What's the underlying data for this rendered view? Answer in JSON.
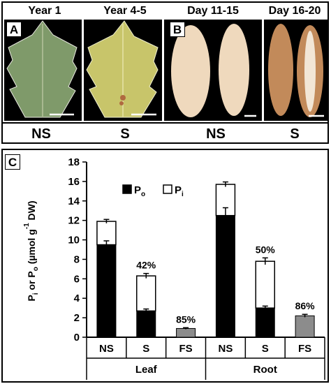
{
  "panel_a": {
    "letter": "A",
    "headers": [
      "Year 1",
      "Year 4-5"
    ],
    "conditions": [
      "NS",
      "S"
    ]
  },
  "panel_b": {
    "letter": "B",
    "headers": [
      "Day 11-15",
      "Day 16-20"
    ],
    "conditions": [
      "NS",
      "S"
    ]
  },
  "colors": {
    "leaf_ns": "#7f9a6a",
    "leaf_s": "#c8c56a",
    "root_ns": "#efd9bd",
    "root_s": "#c28a5a",
    "po_fill": "#000000",
    "pi_fill": "#ffffff",
    "fs_fill": "#8c8c8c"
  },
  "chart_data": {
    "letter": "C",
    "type": "bar",
    "stacked": true,
    "ylabel_parts": [
      "P",
      "i",
      " or P",
      "o",
      " (µmol g",
      "-1",
      " DW)"
    ],
    "ylim": [
      0,
      18
    ],
    "yticks": [
      "0",
      "2",
      "4",
      "6",
      "8",
      "10",
      "12",
      "14",
      "16",
      "18"
    ],
    "categories": [
      "NS",
      "S",
      "FS",
      "NS",
      "S",
      "FS"
    ],
    "groups": [
      "Leaf",
      "Root"
    ],
    "legend": [
      {
        "main": "P",
        "sub": "o",
        "color": "#000000"
      },
      {
        "main": "P",
        "sub": "i",
        "color": "#ffffff"
      }
    ],
    "series": [
      {
        "key": "Po",
        "values": [
          9.5,
          2.7,
          null,
          12.5,
          3.0,
          null
        ],
        "errors": [
          0.4,
          0.2,
          null,
          0.8,
          0.2,
          null
        ]
      },
      {
        "key": "Pi",
        "values": [
          2.4,
          3.6,
          null,
          3.2,
          4.8,
          null
        ],
        "errors": [
          0.2,
          0.25,
          null,
          0.25,
          0.35,
          null
        ]
      },
      {
        "key": "FS",
        "values": [
          null,
          null,
          0.9,
          null,
          null,
          2.2
        ],
        "errors": [
          null,
          null,
          0.08,
          null,
          null,
          0.15
        ]
      }
    ],
    "annotations": [
      "",
      "42%",
      "85%",
      "",
      "50%",
      "86%"
    ]
  }
}
